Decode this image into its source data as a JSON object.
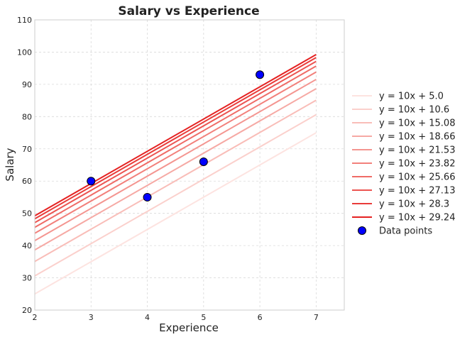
{
  "chart_data": {
    "type": "line",
    "title": "Salary vs Experience",
    "xlabel": "Experience",
    "ylabel": "Salary",
    "xlim": [
      2,
      7.5
    ],
    "ylim": [
      20,
      110
    ],
    "xticks": [
      2,
      3,
      4,
      5,
      6,
      7
    ],
    "yticks": [
      20,
      30,
      40,
      50,
      60,
      70,
      80,
      90,
      100,
      110
    ],
    "grid": true,
    "legend_position": "right",
    "lines": [
      {
        "name": "y = 10x + 5.0",
        "slope": 10,
        "intercept": 5.0,
        "color": "#fde3e0"
      },
      {
        "name": "y = 10x + 10.6",
        "slope": 10,
        "intercept": 10.6,
        "color": "#fbd0cc"
      },
      {
        "name": "y = 10x + 15.08",
        "slope": 10,
        "intercept": 15.08,
        "color": "#f9bdb8"
      },
      {
        "name": "y = 10x + 18.66",
        "slope": 10,
        "intercept": 18.66,
        "color": "#f6a9a4"
      },
      {
        "name": "y = 10x + 21.53",
        "slope": 10,
        "intercept": 21.53,
        "color": "#f49590"
      },
      {
        "name": "y = 10x + 23.82",
        "slope": 10,
        "intercept": 23.82,
        "color": "#f2807b"
      },
      {
        "name": "y = 10x + 25.66",
        "slope": 10,
        "intercept": 25.66,
        "color": "#ef6b66"
      },
      {
        "name": "y = 10x + 27.13",
        "slope": 10,
        "intercept": 27.13,
        "color": "#ec5451"
      },
      {
        "name": "y = 10x + 28.3",
        "slope": 10,
        "intercept": 28.3,
        "color": "#e93c3a"
      },
      {
        "name": "y = 10x + 29.24",
        "slope": 10,
        "intercept": 29.24,
        "color": "#e52222"
      }
    ],
    "scatter": {
      "name": "Data points",
      "color": "#0000ff",
      "edge_color": "#000000",
      "x": [
        3,
        4,
        5,
        6
      ],
      "y": [
        60,
        55,
        66,
        93
      ]
    }
  }
}
